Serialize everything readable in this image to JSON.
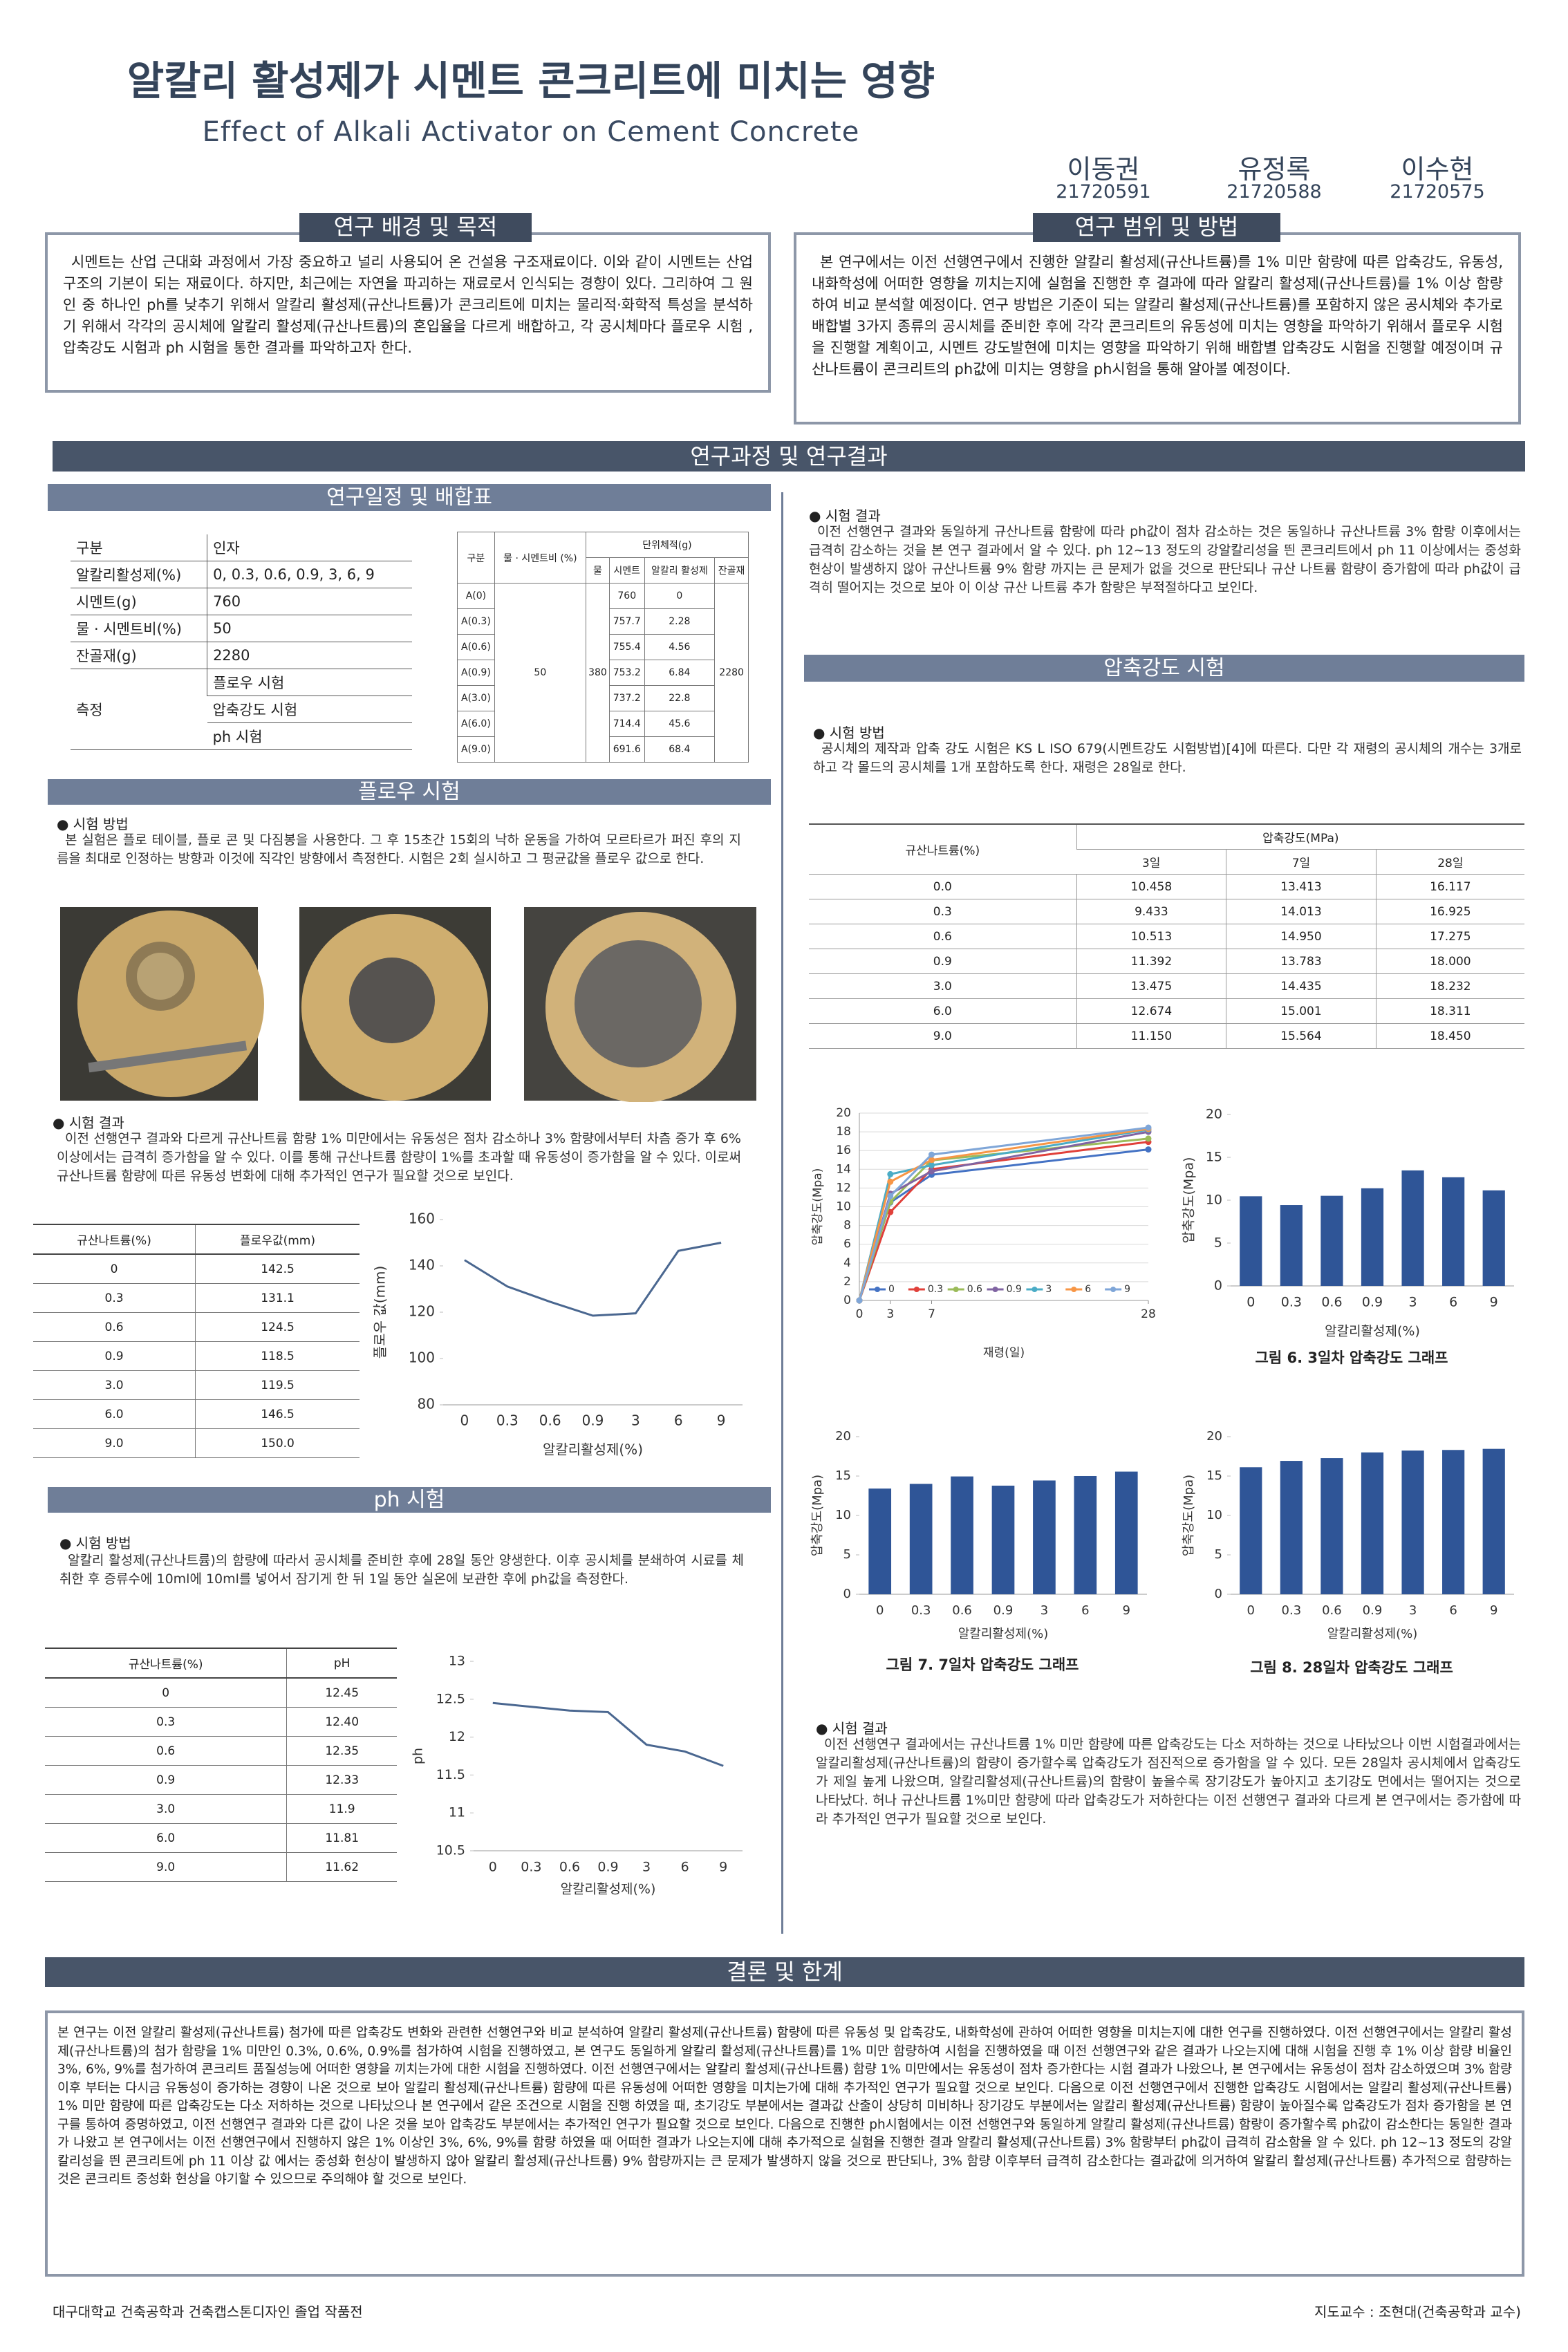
{
  "header": {
    "title": "알칼리 활성제가 시멘트 콘크리트에 미치는 영향",
    "subtitle": "Effect of Alkali Activator on Cement Concrete"
  },
  "authors": [
    {
      "name": "이동권",
      "id": "21720591"
    },
    {
      "name": "유정록",
      "id": "21720588"
    },
    {
      "name": "이수현",
      "id": "21720575"
    }
  ],
  "background": {
    "title": "연구 배경 및 목적",
    "text": "시멘트는 산업 근대화 과정에서 가장 중요하고 널리 사용되어 온 건설용 구조재료이다. 이와 같이 시멘트는 산업구조의 기본이 되는 재료이다. 하지만, 최근에는 자연을 파괴하는 재료로서 인식되는 경향이 있다. 그리하여 그 원인 중 하나인 ph를 낮추기 위해서 알칼리 활성제(규산나트륨)가 콘크리트에 미치는 물리적·화학적 특성을 분석하기 위해서 각각의 공시체에 알칼리 활성제(규산나트륨)의 혼입율을 다르게 배합하고, 각 공시체마다 플로우 시험 ,압축강도 시험과 ph 시험을 통한 결과를 파악하고자 한다."
  },
  "scope": {
    "title": "연구 범위 및 방법",
    "text": "본 연구에서는 이전 선행연구에서 진행한 알칼리 활성제(규산나트륨)를 1% 미만 함량에 따른 압축강도, 유동성, 내화학성에 어떠한 영향을 끼치는지에 실험을 진행한 후 결과에 따라 알칼리 활성제(규산나트륨)를 1% 이상 함량 하여 비교 분석할 예정이다. 연구 방법은 기준이 되는 알칼리 활성제(규산나트륨)를 포함하지 않은 공시체와 추가로 배합별 3가지 종류의 공시체를 준비한 후에 각각 콘크리트의 유동성에 미치는 영향을 파악하기 위해서 플로우 시험을 진행할 계획이고, 시멘트 강도발현에 미치는 영향을 파악하기 위해 배합별 압축강도 시험을 진행할 예정이며 규산나트륨이 콘크리트의 ph값에 미치는 영향을 ph시험을 통해 알아볼 예정이다."
  },
  "banner": "연구과정 및 연구결과",
  "schedule": {
    "title": "연구일정 및 배합표",
    "factor_table": {
      "header": [
        "구분",
        "인자"
      ],
      "rows": [
        [
          "알칼리활성제(%)",
          "0, 0.3, 0.6, 0.9, 3, 6, 9"
        ],
        [
          "시멘트(g)",
          "760"
        ],
        [
          "물 · 시멘트비(%)",
          "50"
        ],
        [
          "잔골재(g)",
          "2280"
        ]
      ],
      "measure": {
        "label": "측정",
        "items": [
          "플로우 시험",
          "압축강도 시험",
          "ph 시험"
        ]
      }
    },
    "mix_table": {
      "header": {
        "group": "구분",
        "wc": "물 · 시멘트비 (%)",
        "unit": "단위체적(g)",
        "water": "물",
        "cement": "시멘트",
        "activator": "알칼리 활성제",
        "sand": "잔골재"
      },
      "wc": "50",
      "water": "380",
      "sand": "2280",
      "rows": [
        [
          "A(0)",
          "760",
          "0"
        ],
        [
          "A(0.3)",
          "757.7",
          "2.28"
        ],
        [
          "A(0.6)",
          "755.4",
          "4.56"
        ],
        [
          "A(0.9)",
          "753.2",
          "6.84"
        ],
        [
          "A(3.0)",
          "737.2",
          "22.8"
        ],
        [
          "A(6.0)",
          "714.4",
          "45.6"
        ],
        [
          "A(9.0)",
          "691.6",
          "68.4"
        ]
      ]
    }
  },
  "flow": {
    "title": "플로우 시험",
    "method_label": "● 시험 방법",
    "method": "본 실험은 플로 테이블, 플로 콘 및 다짐봉을 사용한다. 그 후 15초간 15회의 낙하 운동을 가하여 모르타르가 퍼진 후의 지름을 최대로 인정하는 방향과 이것에 직각인 방향에서 측정한다. 시험은 2회 실시하고 그 평균값을 플로우 값으로 한다.",
    "result_label": "● 시험 결과",
    "result": "이전 선행연구 결과와 다르게 규산나트륨 함량 1% 미만에서는 유동성은 점차 감소하나 3% 함량에서부터 차츰 증가 후 6% 이상에서는 급격히 증가함을 알 수 있다. 이를 통해 규산나트륨 함량이 1%를 초과할 때 유동성이 증가함을 알 수 있다. 이로써 규산나트륨 함량에 따른 유동성 변화에 대해 추가적인 연구가 필요할 것으로 보인다.",
    "table": {
      "header": [
        "규산나트륨(%)",
        "플로우값(mm)"
      ],
      "rows": [
        [
          "0",
          "142.5"
        ],
        [
          "0.3",
          "131.1"
        ],
        [
          "0.6",
          "124.5"
        ],
        [
          "0.9",
          "118.5"
        ],
        [
          "3.0",
          "119.5"
        ],
        [
          "6.0",
          "146.5"
        ],
        [
          "9.0",
          "150.0"
        ]
      ]
    },
    "chart": {
      "type": "line",
      "categories": [
        "0",
        "0.3",
        "0.6",
        "0.9",
        "3",
        "6",
        "9"
      ],
      "values": [
        142.5,
        131.1,
        124.5,
        118.5,
        119.5,
        146.5,
        150.0
      ],
      "color": "#4a6790",
      "ylim": [
        80,
        160
      ],
      "yticks": [
        80,
        100,
        120,
        140,
        160
      ],
      "xlabel": "알칼리활성제(%)",
      "ylabel": "플로우 값(mm)",
      "grid": false
    }
  },
  "ph": {
    "title": "ph 시험",
    "method_label": "● 시험 방법",
    "method": "알칼리 활성제(규산나트륨)의 함량에 따라서 공시체를 준비한 후에 28일 동안 양생한다. 이후 공시체를 분쇄하여 시료를 체취한 후 증류수에 10ml에 10ml를 넣어서 잠기게 한 뒤 1일 동안 실온에 보관한 후에 ph값을 측정한다.",
    "result_label": "● 시험 결과",
    "result": "이전 선행연구 결과와 동일하게 규산나트륨 함량에 따라 ph값이 점차 감소하는 것은 동일하나 규산나트륨 3% 함량 이후에서는 급격히 감소하는 것을 본 연구 결과에서 알 수 있다. ph 12~13 정도의 강알칼리성을 띈 콘크리트에서 ph 11 이상에서는 중성화 현상이 발생하지 않아 규산나트륨 9% 함량 까지는 큰 문제가 없을 것으로 판단되나 규산 나트륨 함량이 증가함에 따라 ph값이 급격히 떨어지는 것으로 보아 이 이상 규산 나트륨 추가 함량은 부적절하다고 보인다.",
    "table": {
      "header": [
        "규산나트륨(%)",
        "pH"
      ],
      "rows": [
        [
          "0",
          "12.45"
        ],
        [
          "0.3",
          "12.40"
        ],
        [
          "0.6",
          "12.35"
        ],
        [
          "0.9",
          "12.33"
        ],
        [
          "3.0",
          "11.9"
        ],
        [
          "6.0",
          "11.81"
        ],
        [
          "9.0",
          "11.62"
        ]
      ]
    },
    "chart": {
      "type": "line",
      "categories": [
        "0",
        "0.3",
        "0.6",
        "0.9",
        "3",
        "6",
        "9"
      ],
      "values": [
        12.45,
        12.4,
        12.35,
        12.33,
        11.9,
        11.81,
        11.62
      ],
      "color": "#4a6790",
      "ylim": [
        10.5,
        13
      ],
      "yticks": [
        10.5,
        11,
        11.5,
        12,
        12.5,
        13
      ],
      "xlabel": "알칼리활성제(%)",
      "ylabel": "ph",
      "grid": false
    }
  },
  "compression": {
    "title": "압축강도 시험",
    "method_label": "● 시험 방법",
    "method": "공시체의 제작과 압축 강도 시험은 KS L ISO 679(시멘트강도 시험방법)[4]에 따른다. 다만 각 재령의 공시체의 개수는 3개로 하고 각 몰드의 공시체를 1개 포함하도록 한다. 재령은 28일로 한다.",
    "table": {
      "header": {
        "group": "규산나트륨(%)",
        "strength": "압축강도(MPa)",
        "days": [
          "3일",
          "7일",
          "28일"
        ]
      },
      "rows": [
        [
          "0.0",
          "10.458",
          "13.413",
          "16.117"
        ],
        [
          "0.3",
          "9.433",
          "14.013",
          "16.925"
        ],
        [
          "0.6",
          "10.513",
          "14.950",
          "17.275"
        ],
        [
          "0.9",
          "11.392",
          "13.783",
          "18.000"
        ],
        [
          "3.0",
          "13.475",
          "14.435",
          "18.232"
        ],
        [
          "6.0",
          "12.674",
          "15.001",
          "18.311"
        ],
        [
          "9.0",
          "11.150",
          "15.564",
          "18.450"
        ]
      ]
    },
    "line_chart": {
      "type": "line",
      "x": [
        0,
        3,
        7,
        28
      ],
      "xlim": [
        0,
        28
      ],
      "xticks": [
        0,
        3,
        7,
        28
      ],
      "ylim": [
        0,
        20
      ],
      "yticks": [
        0,
        2,
        4,
        6,
        8,
        10,
        12,
        14,
        16,
        18,
        20
      ],
      "grid": true,
      "markers": true,
      "legend": "bottom",
      "xlabel": "재령(일)",
      "ylabel": "압축강도(Mpa)",
      "series": [
        {
          "name": "0",
          "color": "#4472c4",
          "values": [
            0,
            10.458,
            13.413,
            16.117
          ]
        },
        {
          "name": "0.3",
          "color": "#e0403a",
          "values": [
            0,
            9.433,
            14.013,
            16.925
          ]
        },
        {
          "name": "0.6",
          "color": "#9bbb59",
          "values": [
            0,
            10.513,
            14.95,
            17.275
          ]
        },
        {
          "name": "0.9",
          "color": "#8064a2",
          "values": [
            0,
            11.392,
            13.783,
            18.0
          ]
        },
        {
          "name": "3",
          "color": "#4bacc6",
          "values": [
            0,
            13.475,
            14.435,
            18.232
          ]
        },
        {
          "name": "6",
          "color": "#f79646",
          "values": [
            0,
            12.674,
            15.001,
            18.311
          ]
        },
        {
          "name": "9",
          "color": "#7fa6d8",
          "values": [
            0,
            11.15,
            15.564,
            18.45
          ]
        }
      ]
    },
    "bar_3": {
      "type": "bar",
      "categories": [
        "0",
        "0.3",
        "0.6",
        "0.9",
        "3",
        "6",
        "9"
      ],
      "values": [
        10.458,
        9.433,
        10.513,
        11.392,
        13.475,
        12.674,
        11.15
      ],
      "color": "#2f5597",
      "ylim": [
        0,
        20
      ],
      "yticks": [
        0,
        5,
        10,
        15,
        20
      ],
      "xlabel": "알칼리활성제(%)",
      "ylabel": "압축강도(Mpa)",
      "grid": false,
      "caption": "그림 6. 3일차 압축강도 그래프"
    },
    "bar_7": {
      "type": "bar",
      "categories": [
        "0",
        "0.3",
        "0.6",
        "0.9",
        "3",
        "6",
        "9"
      ],
      "values": [
        13.413,
        14.013,
        14.95,
        13.783,
        14.435,
        15.001,
        15.564
      ],
      "color": "#2f5597",
      "ylim": [
        0,
        20
      ],
      "yticks": [
        0,
        5,
        10,
        15,
        20
      ],
      "xlabel": "알칼리활성제(%)",
      "ylabel": "압축강도(Mpa)",
      "grid": false,
      "caption": "그림 7. 7일차 압축강도 그래프"
    },
    "bar_28": {
      "type": "bar",
      "categories": [
        "0",
        "0.3",
        "0.6",
        "0.9",
        "3",
        "6",
        "9"
      ],
      "values": [
        16.117,
        16.925,
        17.275,
        18.0,
        18.232,
        18.311,
        18.45
      ],
      "color": "#2f5597",
      "ylim": [
        0,
        20
      ],
      "yticks": [
        0,
        5,
        10,
        15,
        20
      ],
      "xlabel": "알칼리활성제(%)",
      "ylabel": "압축강도(Mpa)",
      "grid": false,
      "caption": "그림 8. 28일차 압축강도 그래프"
    },
    "result_label": "● 시험 결과",
    "result": "이전 선행연구 결과에서는 규산나트륨 1% 미만 함량에 따른 압축강도는 다소 저하하는 것으로 나타났으나 이번 시험결과에서는 알칼리활성제(규산나트륨)의 함량이 증가할수록 압축강도가 점진적으로 증가함을 알 수 있다. 모든 28일차 공시체에서 압축강도가 제일 높게 나왔으며, 알칼리활성제(규산나트륨)의 함량이 높을수록 장기강도가 높아지고 초기강도 면에서는 떨어지는 것으로 나타났다. 허나 규산나트륨 1%미만 함량에 따라 압축강도가 저하한다는 이전 선행연구 결과와 다르게 본 연구에서는 증가함에 따라 추가적인 연구가 필요할 것으로 보인다."
  },
  "conclusion": {
    "title": "결론 및 한계",
    "text": "본 연구는 이전 알칼리 활성제(규산나트륨) 첨가에 따른 압축강도 변화와 관련한 선행연구와 비교 분석하여 알칼리 활성제(규산나트륨) 함량에 따른 유동성 및 압축강도, 내화학성에 관하여 어떠한 영향을 미치는지에 대한 연구를 진행하였다. 이전 선행연구에서는 알칼리 활성제(규산나트륨)의 첨가 함량을 1% 미만인 0.3%, 0.6%, 0.9%를 첨가하여 시험을 진행하였고, 본 연구도 동일하게 알칼리 활성제(규산나트륨)를 1% 미만 함량하여 시험을 진행하였을 때 이전 선행연구와 같은 결과가 나오는지에 대해 시험을 진행 후 1% 이상 함량 비율인 3%, 6%, 9%를 첨가하여 콘크리트 품질성능에 어떠한 영향을 끼치는가에 대한 시험을 진행하였다. 이전 선행연구에서는 알칼리 활성제(규산나트륨) 함량 1% 미만에서는 유동성이 점차 증가한다는 시험 결과가 나왔으나, 본 연구에서는 유동성이 점차 감소하였으며 3% 함량 이후 부터는 다시금 유동성이 증가하는 경향이 나온 것으로 보아 알칼리 활성제(규산나트륨) 함량에 따른 유동성에 어떠한 영향을 미치는가에 대해 추가적인 연구가 필요할 것으로 보인다. 다음으로 이전 선행연구에서 진행한 압축강도 시험에서는 알칼리 활성제(규산나트륨) 1% 미만 함량에 따른 압축강도는 다소 저하하는 것으로 나타났으나 본 연구에서 같은 조건으로 시험을 진행 하였을 때, 초기강도 부분에서는 결과값 산출이 상당히 미비하나 장기강도 부분에서는 알칼리 활성제(규산나트륨) 함량이 높아질수록 압축강도가 점차 증가함을 본 연구를 통하여 증명하였고, 이전 선행연구 결과와 다른 값이 나온 것을 보아 압축강도 부분에서는 추가적인 연구가 필요할 것으로 보인다. 다음으로 진행한 ph시험에서는 이전 선행연구와 동일하게 알칼리 활성제(규산나트륨) 함량이 증가할수록 ph값이 감소한다는 동일한 결과가 나왔고 본 연구에서는 이전 선행연구에서 진행하지 않은 1% 이상인 3%, 6%, 9%를 함량 하였을 때 어떠한 결과가 나오는지에 대해 추가적으로 실험을 진행한 결과 알칼리 활성제(규산나트륨) 3% 함량부터 ph값이 급격히 감소함을 알 수 있다. ph 12~13 정도의 강알칼리성을 띈 콘크리트에 ph 11 이상 값 에서는 중성화 현상이 발생하지 않아 알칼리 활성제(규산나트륨) 9% 함량까지는 큰 문제가 발생하지 않을 것으로 판단되나, 3% 함량 이후부터 급격히 감소한다는 결과값에 의거하여 알칼리 활성제(규산나트륨) 추가적으로 함량하는 것은 콘크리트 중성화 현상을 야기할 수 있으므로 주의해야 할 것으로 보인다."
  },
  "footer": {
    "left": "대구대학교 건축공학과 건축캡스톤디자인 졸업 작품전",
    "right": "지도교수 : 조현대(건축공학과 교수)"
  }
}
